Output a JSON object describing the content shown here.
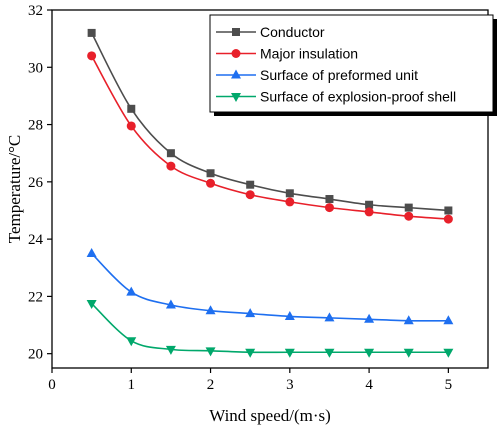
{
  "chart_data": {
    "type": "line",
    "xlabel": "Wind speed/(m·s)",
    "ylabel": "Temperature/°C",
    "xlim": [
      0,
      5.5
    ],
    "ylim": [
      19.5,
      32
    ],
    "xticks": [
      0,
      1,
      2,
      3,
      4,
      5
    ],
    "yticks": [
      20,
      22,
      24,
      26,
      28,
      30,
      32
    ],
    "x": [
      0.5,
      1.0,
      1.5,
      2.0,
      2.5,
      3.0,
      3.5,
      4.0,
      4.5,
      5.0
    ],
    "grid": false,
    "legend_position": "top-right",
    "series": [
      {
        "name": "Conductor",
        "color": "#4d4d4d",
        "marker": "square",
        "values": [
          31.2,
          28.55,
          27.0,
          26.3,
          25.9,
          25.6,
          25.4,
          25.2,
          25.1,
          25.0
        ]
      },
      {
        "name": "Major insulation",
        "color": "#e8202a",
        "marker": "circle",
        "values": [
          30.4,
          27.95,
          26.55,
          25.95,
          25.55,
          25.3,
          25.1,
          24.95,
          24.8,
          24.7
        ]
      },
      {
        "name": "Surface of preformed unit",
        "color": "#1e6ff0",
        "marker": "triangle-up",
        "values": [
          23.5,
          22.15,
          21.7,
          21.5,
          21.4,
          21.3,
          21.25,
          21.2,
          21.15,
          21.15
        ]
      },
      {
        "name": "Surface of explosion-proof shell",
        "color": "#00a86b",
        "marker": "triangle-down",
        "values": [
          21.75,
          20.45,
          20.15,
          20.1,
          20.05,
          20.05,
          20.05,
          20.05,
          20.05,
          20.05
        ]
      }
    ]
  }
}
